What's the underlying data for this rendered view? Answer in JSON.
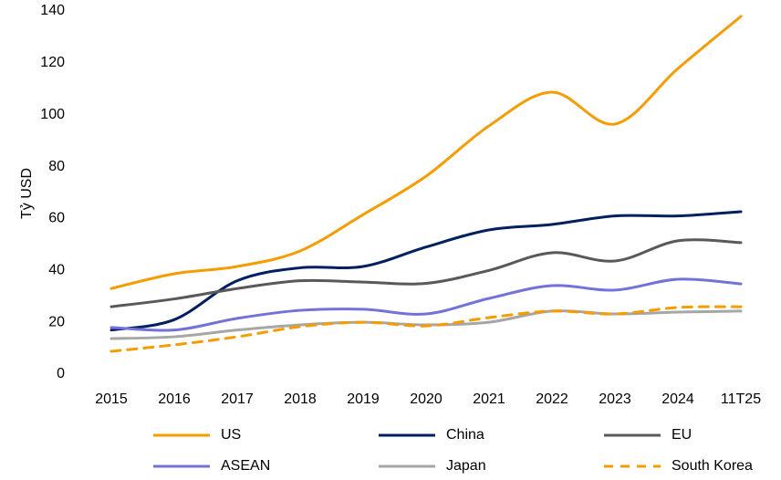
{
  "chart_data": {
    "type": "line",
    "ylabel": "Tỷ USD",
    "categories": [
      "2015",
      "2016",
      "2017",
      "2018",
      "2019",
      "2020",
      "2021",
      "2022",
      "2023",
      "2024",
      "11T25"
    ],
    "ylim": [
      0,
      140
    ],
    "yticks": [
      0,
      20,
      40,
      60,
      80,
      100,
      120,
      140
    ],
    "grid": false,
    "series": [
      {
        "name": "US",
        "color": "#f59c00",
        "dash": false,
        "values": [
          33,
          38.7,
          41.5,
          47.5,
          61.5,
          76.3,
          95.7,
          108.7,
          96.4,
          117.8,
          137.9
        ]
      },
      {
        "name": "China",
        "color": "#002060",
        "dash": false,
        "values": [
          17,
          21,
          36,
          41,
          41.5,
          49,
          55.6,
          57.7,
          61,
          61,
          62.6
        ]
      },
      {
        "name": "EU",
        "color": "#595959",
        "dash": false,
        "values": [
          26,
          29,
          33,
          36,
          35.5,
          35,
          40,
          46.8,
          43.6,
          51.4,
          50.7
        ]
      },
      {
        "name": "ASEAN",
        "color": "#7272d9",
        "dash": false,
        "values": [
          18,
          17,
          21.5,
          24.6,
          25,
          23.2,
          29.2,
          34.1,
          32.4,
          36.6,
          34.8
        ]
      },
      {
        "name": "Japan",
        "color": "#a6a6a6",
        "dash": false,
        "values": [
          13.7,
          14.4,
          17,
          19,
          20,
          19,
          20,
          24.3,
          23.2,
          23.9,
          24.3
        ]
      },
      {
        "name": "South Korea",
        "color": "#f59c00",
        "dash": true,
        "values": [
          8.8,
          11.3,
          14.4,
          18.3,
          20,
          18.6,
          21.8,
          24.3,
          23.2,
          25.7,
          26
        ]
      }
    ]
  }
}
